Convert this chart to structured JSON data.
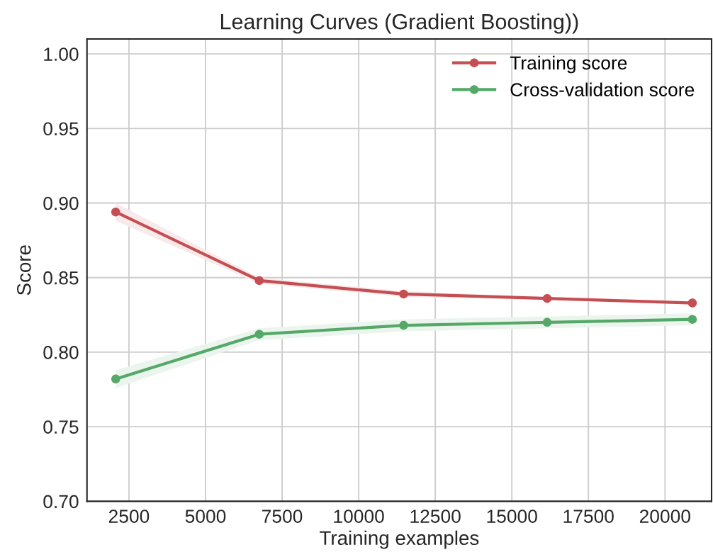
{
  "chart_data": {
    "type": "line",
    "title": "Learning Curves (Gradient Boosting))",
    "xlabel": "Training examples",
    "ylabel": "Score",
    "x": [
      2067,
      6754,
      11467,
      16152,
      20893
    ],
    "series": [
      {
        "name": "Training score",
        "color": "#c44e52",
        "values": [
          0.894,
          0.848,
          0.839,
          0.836,
          0.833
        ],
        "lower": [
          0.888,
          0.846,
          0.837,
          0.835,
          0.832
        ],
        "upper": [
          0.9,
          0.85,
          0.841,
          0.837,
          0.834
        ]
      },
      {
        "name": "Cross-validation score",
        "color": "#55a868",
        "values": [
          0.782,
          0.812,
          0.818,
          0.82,
          0.822
        ],
        "lower": [
          0.776,
          0.808,
          0.814,
          0.816,
          0.818
        ],
        "upper": [
          0.788,
          0.816,
          0.822,
          0.824,
          0.826
        ]
      }
    ],
    "xlim": [
      1130,
      21520
    ],
    "xticks": [
      2500,
      5000,
      7500,
      10000,
      12500,
      15000,
      17500,
      20000
    ],
    "ylim": [
      0.7,
      1.01
    ],
    "yticks": [
      {
        "value": 0.7,
        "label": "0.70"
      },
      {
        "value": 0.75,
        "label": "0.75"
      },
      {
        "value": 0.8,
        "label": "0.80"
      },
      {
        "value": 0.85,
        "label": "0.85"
      },
      {
        "value": 0.9,
        "label": "0.90"
      },
      {
        "value": 0.95,
        "label": "0.95"
      },
      {
        "value": 1.0,
        "label": "1.00"
      }
    ],
    "grid": true,
    "legend": "top right",
    "marker": "circle",
    "line_style": "solid"
  }
}
